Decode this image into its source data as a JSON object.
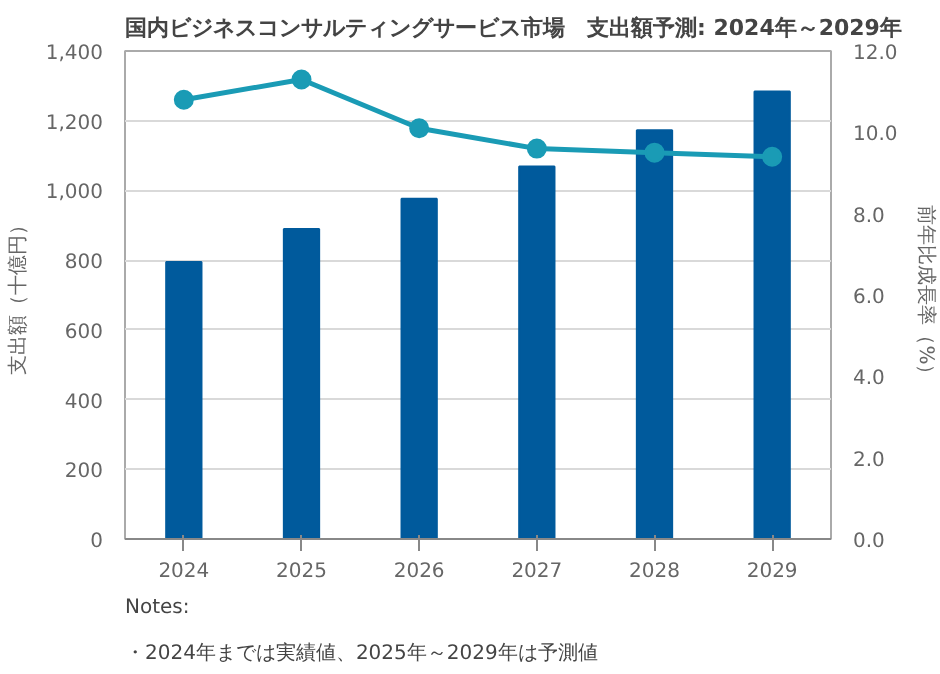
{
  "chart_data": {
    "type": "bar",
    "title": "国内ビジネスコンサルティングサービス市場　支出額予測: 2024年～2029年",
    "ylabel": "支出額（十億円）",
    "y2label": "前年比成長率（%）",
    "categories": [
      "2024",
      "2025",
      "2026",
      "2027",
      "2028",
      "2029"
    ],
    "series": [
      {
        "color": "#005a9c",
        "values": [
          795,
          889,
          976,
          1069,
          1173,
          1284
        ]
      },
      {
        "type": "line",
        "axis": "y2",
        "color": "#1a9bb5",
        "marker": "circle",
        "values": [
          10.8,
          11.3,
          10.1,
          9.6,
          9.5,
          9.4
        ]
      }
    ],
    "ylim": [
      0,
      1400
    ],
    "yticks": [
      0,
      {
        "value": 200,
        "label": "200"
      },
      {
        "value": 400,
        "label": "400"
      },
      {
        "value": 600,
        "label": "600"
      },
      {
        "value": 800,
        "label": "800"
      },
      {
        "value": 1000,
        "label": "1,000"
      },
      {
        "value": 1200,
        "label": "1,200"
      },
      {
        "value": 1400,
        "label": "1,400"
      }
    ],
    "y2lim": [
      0,
      12
    ],
    "y2ticks": [
      {
        "value": 0,
        "label": "0.0"
      },
      {
        "value": 2,
        "label": "2.0"
      },
      {
        "value": 4,
        "label": "4.0"
      },
      {
        "value": 6,
        "label": "6.0"
      },
      {
        "value": 8,
        "label": "8.0"
      },
      {
        "value": 10,
        "label": "10.0"
      },
      {
        "value": 12,
        "label": "12.0"
      }
    ],
    "grid": "y",
    "annotations": [
      "Notes:",
      "・2024年までは実績値、2025年～2029年は予測値"
    ]
  }
}
